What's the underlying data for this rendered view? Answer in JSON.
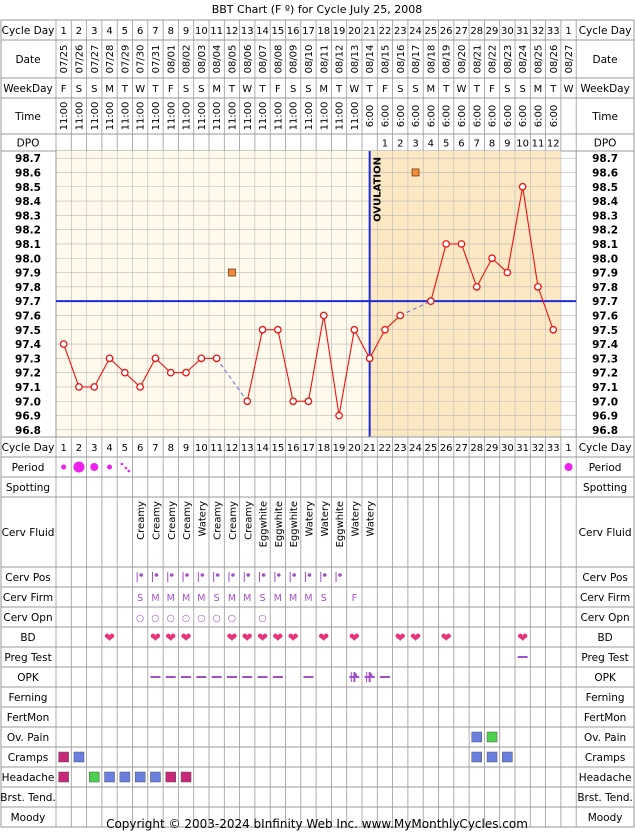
{
  "title": "BBT Chart (F º) for Cycle July 25, 2008",
  "copyright": "Copyright © 2003-2024 bInfinity Web Inc.     www.MyMonthlyCycles.com",
  "colors": {
    "grid": "#999999",
    "pre_ovulation_bg": "#fffaeb",
    "post_ovulation_bg": "#fde8c4",
    "header_bg": "#ffffff",
    "temp_line": "#ee1111",
    "point_fill": "#ffffff",
    "coverline": "#1f2bd6",
    "ovulation_line": "#1f2bd6",
    "flagged_point": "#f08a3c",
    "period": "#ee22ee",
    "bd_heart": "#e8337a",
    "purple_text": "#a050c8",
    "opk": "#a050c8",
    "pain_blue": "#6a7ee0",
    "pain_green": "#4ccf4c",
    "cramps_magenta": "#c8287a",
    "headache_green": "#4ccf4c"
  },
  "labels": {
    "cycle_day": "Cycle Day",
    "date": "Date",
    "weekday": "WeekDay",
    "time": "Time",
    "dpo": "DPO",
    "ovulation": "OVULATION"
  },
  "days": {
    "cycle_days": [
      "1",
      "2",
      "3",
      "4",
      "5",
      "6",
      "7",
      "8",
      "9",
      "10",
      "11",
      "12",
      "13",
      "14",
      "15",
      "16",
      "17",
      "18",
      "19",
      "20",
      "21",
      "22",
      "23",
      "24",
      "25",
      "26",
      "27",
      "28",
      "29",
      "30",
      "31",
      "32",
      "33",
      "1"
    ],
    "dates": [
      "07/25",
      "07/26",
      "07/27",
      "07/28",
      "07/29",
      "07/30",
      "07/31",
      "08/01",
      "08/02",
      "08/03",
      "08/04",
      "08/05",
      "08/06",
      "08/07",
      "08/08",
      "08/09",
      "08/10",
      "08/11",
      "08/12",
      "08/13",
      "08/14",
      "08/15",
      "08/16",
      "08/17",
      "08/18",
      "08/19",
      "08/20",
      "08/21",
      "08/22",
      "08/23",
      "08/24",
      "08/25",
      "08/26",
      "08/27"
    ],
    "weekdays": [
      "F",
      "S",
      "S",
      "M",
      "T",
      "W",
      "T",
      "F",
      "S",
      "S",
      "M",
      "T",
      "W",
      "T",
      "F",
      "S",
      "S",
      "M",
      "T",
      "W",
      "T",
      "F",
      "S",
      "S",
      "M",
      "T",
      "W",
      "T",
      "F",
      "S",
      "S",
      "M",
      "T",
      "W"
    ],
    "times": [
      "11:00",
      "11:00",
      "11:00",
      "11:00",
      "11:00",
      "11:00",
      "11:00",
      "11:00",
      "11:00",
      "11:00",
      "11:00",
      "11:00",
      "11:00",
      "11:00",
      "11:00",
      "11:00",
      "11:00",
      "11:00",
      "11:00",
      "11:00",
      "6:00",
      "6:00",
      "6:00",
      "6:00",
      "6:00",
      "6:00",
      "6:00",
      "6:00",
      "6:00",
      "6:00",
      "6:00",
      "6:00",
      "6:00",
      ""
    ],
    "dpo": [
      "",
      "",
      "",
      "",
      "",
      "",
      "",
      "",
      "",
      "",
      "",
      "",
      "",
      "",
      "",
      "",
      "",
      "",
      "",
      "",
      "",
      "1",
      "2",
      "3",
      "4",
      "5",
      "6",
      "7",
      "8",
      "9",
      "10",
      "11",
      "12",
      ""
    ]
  },
  "chart_data": {
    "type": "line",
    "title": "BBT Chart (F º) for Cycle July 25, 2008",
    "x": [
      "1",
      "2",
      "3",
      "4",
      "5",
      "6",
      "7",
      "8",
      "9",
      "10",
      "11",
      "12",
      "13",
      "14",
      "15",
      "16",
      "17",
      "18",
      "19",
      "20",
      "21",
      "22",
      "23",
      "24",
      "25",
      "26",
      "27",
      "28",
      "29",
      "30",
      "31",
      "32",
      "33"
    ],
    "temps": [
      97.4,
      97.1,
      97.1,
      97.3,
      97.2,
      97.1,
      97.3,
      97.2,
      97.2,
      97.3,
      97.3,
      null,
      97.0,
      97.5,
      97.5,
      97.0,
      97.0,
      97.6,
      96.9,
      97.5,
      97.3,
      97.5,
      97.6,
      null,
      97.7,
      98.1,
      98.1,
      97.8,
      98.0,
      97.9,
      98.5,
      97.8,
      97.5
    ],
    "excluded_points": [
      {
        "day": 12,
        "temp": 97.9
      },
      {
        "day": 24,
        "temp": 98.6
      }
    ],
    "ylim": [
      96.8,
      98.7
    ],
    "yticks": [
      "98.7",
      "98.6",
      "98.5",
      "98.4",
      "98.3",
      "98.2",
      "98.1",
      "98.0",
      "97.9",
      "97.8",
      "97.7",
      "97.6",
      "97.5",
      "97.4",
      "97.3",
      "97.2",
      "97.1",
      "97.0",
      "96.9",
      "96.8"
    ],
    "coverline": 97.7,
    "ovulation_day": 21,
    "grid": true
  },
  "rows": [
    {
      "label": "Period",
      "cells": {
        "1": "period-small",
        "2": "period-large",
        "3": "period-medium",
        "4": "period-small",
        "5": "period-spotting",
        "34": "period-medium"
      }
    },
    {
      "label": "Spotting",
      "cells": {}
    },
    {
      "label": "Cerv Fluid",
      "cells": {
        "6": "Creamy",
        "7": "Creamy",
        "8": "Creamy",
        "9": "Creamy",
        "10": "Watery",
        "11": "Creamy",
        "12": "Creamy",
        "13": "Creamy",
        "14": "Eggwhite",
        "15": "Eggwhite",
        "16": "Eggwhite",
        "17": "Watery",
        "18": "Watery",
        "19": "Eggwhite",
        "20": "Watery",
        "21": "Watery"
      }
    },
    {
      "label": "Cerv Pos",
      "cells": {
        "6": "pos",
        "7": "pos",
        "8": "pos",
        "9": "pos",
        "10": "pos",
        "11": "pos",
        "12": "pos",
        "13": "pos",
        "14": "pos",
        "15": "pos",
        "16": "pos",
        "17": "pos",
        "18": "pos",
        "19": "pos"
      }
    },
    {
      "label": "Cerv Firm",
      "cells": {
        "6": "S",
        "7": "M",
        "8": "M",
        "9": "M",
        "10": "M",
        "11": "S",
        "12": "M",
        "13": "M",
        "14": "S",
        "15": "M",
        "16": "M",
        "17": "M",
        "18": "S",
        "20": "F"
      }
    },
    {
      "label": "Cerv Opn",
      "cells": {
        "6": "○",
        "7": "○",
        "8": "○",
        "9": "○",
        "10": "○",
        "11": "○",
        "12": "○",
        "14": "○"
      }
    },
    {
      "label": "BD",
      "cells": {
        "4": "heart",
        "7": "heart",
        "8": "heart",
        "9": "heart",
        "12": "heart",
        "13": "heart",
        "14": "heart",
        "15": "heart",
        "16": "heart",
        "18": "heart",
        "20": "heart",
        "23": "heart",
        "24": "heart",
        "26": "heart",
        "31": "heart"
      }
    },
    {
      "label": "Preg Test",
      "cells": {
        "31": "neg"
      }
    },
    {
      "label": "OPK",
      "cells": {
        "7": "neg",
        "8": "neg",
        "9": "neg",
        "10": "neg",
        "11": "neg",
        "12": "neg",
        "13": "neg",
        "14": "neg",
        "15": "neg",
        "17": "neg",
        "20": "pos",
        "21": "pos",
        "22": "neg"
      }
    },
    {
      "label": "Ferning",
      "cells": {}
    },
    {
      "label": "FertMon",
      "cells": {}
    },
    {
      "label": "Ov. Pain",
      "cells": {
        "28": "sq-blue",
        "29": "sq-green"
      }
    },
    {
      "label": "Cramps",
      "cells": {
        "1": "sq-magenta",
        "2": "sq-blue",
        "28": "sq-blue",
        "29": "sq-blue",
        "30": "sq-blue"
      }
    },
    {
      "label": "Headache",
      "cells": {
        "1": "sq-magenta",
        "3": "sq-green",
        "4": "sq-blue",
        "5": "sq-blue",
        "6": "sq-blue",
        "7": "sq-blue",
        "8": "sq-magenta",
        "9": "sq-magenta"
      }
    },
    {
      "label": "Brst. Tend.",
      "cells": {}
    },
    {
      "label": "Moody",
      "cells": {}
    }
  ]
}
